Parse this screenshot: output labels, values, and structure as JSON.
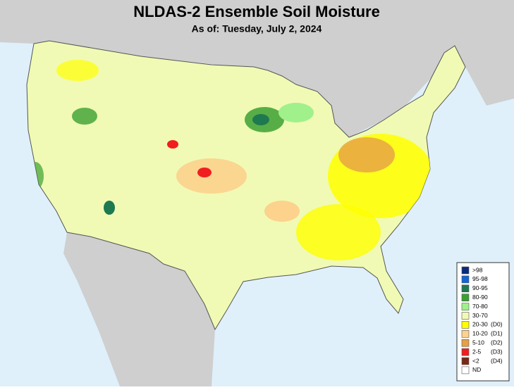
{
  "header": {
    "title": "NLDAS-2 Ensemble Soil Moisture",
    "subtitle": "As of: Tuesday, July 2, 2024"
  },
  "legend": {
    "items": [
      {
        "label": ">98",
        "color": "#0a2a7a"
      },
      {
        "label": "95-98",
        "color": "#1464d2"
      },
      {
        "label": "90-95",
        "color": "#1e7850"
      },
      {
        "label": "80-90",
        "color": "#3ca032"
      },
      {
        "label": "70-80",
        "color": "#a0f08c"
      },
      {
        "label": "30-70",
        "color": "#f0fab4"
      },
      {
        "label": "20-30",
        "note": "(D0)",
        "color": "#ffff00"
      },
      {
        "label": "10-20",
        "note": "(D1)",
        "color": "#fcd28c"
      },
      {
        "label": "5-10",
        "note": "(D2)",
        "color": "#e6a046"
      },
      {
        "label": "2-5",
        "note": "(D3)",
        "color": "#f01e1e"
      },
      {
        "label": "<2",
        "note": "(D4)",
        "color": "#782814"
      },
      {
        "label": "ND",
        "color": "#ffffff"
      }
    ]
  }
}
